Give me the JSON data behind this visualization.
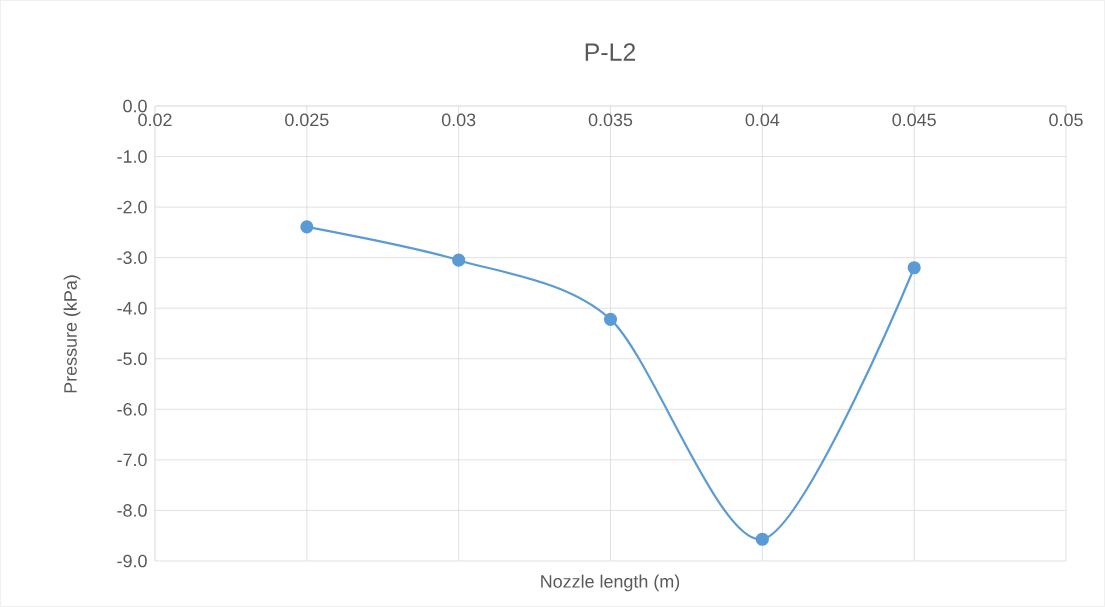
{
  "chart_data": {
    "type": "line",
    "title": "P-L2",
    "xlabel": "Nozzle length (m)",
    "ylabel": "Pressure (kPa)",
    "x": [
      0.025,
      0.03,
      0.035,
      0.04,
      0.045
    ],
    "series": [
      {
        "color": "#5b9bd5",
        "values": [
          -2.39,
          -3.05,
          -4.22,
          -8.57,
          -3.2
        ]
      }
    ],
    "xlim": [
      0.02,
      0.05
    ],
    "xticks": [
      0.02,
      0.025,
      0.03,
      0.035,
      0.04,
      0.045,
      0.05
    ],
    "ylim": [
      -9,
      0
    ],
    "yticks": [
      {
        "value": 0,
        "label": "0.0"
      },
      {
        "value": -1,
        "label": "-1.0"
      },
      {
        "value": -2,
        "label": "-2.0"
      },
      {
        "value": -3,
        "label": "-3.0"
      },
      {
        "value": -4,
        "label": "-4.0"
      },
      {
        "value": -5,
        "label": "-5.0"
      },
      {
        "value": -6,
        "label": "-6.0"
      },
      {
        "value": -7,
        "label": "-7.0"
      },
      {
        "value": -8,
        "label": "-8.0"
      },
      {
        "value": -9,
        "label": "-9.0"
      }
    ],
    "grid": true,
    "marker": "circle",
    "line_style": "solid"
  }
}
